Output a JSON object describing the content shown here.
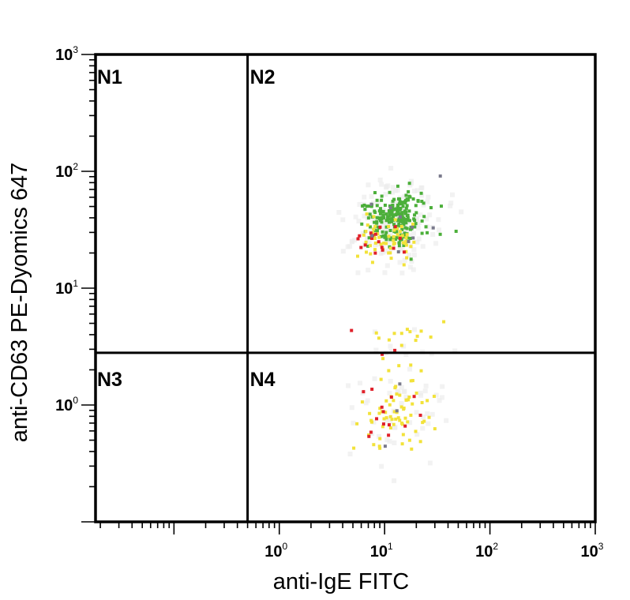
{
  "chart_data": {
    "type": "scatter",
    "title": "",
    "xlabel": "anti-IgE FITC",
    "ylabel": "anti-CD63 PE-Dyomics 647",
    "x_scale": "log",
    "y_scale": "log",
    "xlim": [
      0.018,
      1000
    ],
    "ylim": [
      0.1,
      1000
    ],
    "x_ticks": [
      {
        "value": 1,
        "base": "10",
        "exp": "0"
      },
      {
        "value": 10,
        "base": "10",
        "exp": "1"
      },
      {
        "value": 100,
        "base": "10",
        "exp": "2"
      },
      {
        "value": 1000,
        "base": "10",
        "exp": "3"
      }
    ],
    "y_ticks": [
      {
        "value": 1,
        "base": "10",
        "exp": "0"
      },
      {
        "value": 10,
        "base": "10",
        "exp": "1"
      },
      {
        "value": 100,
        "base": "10",
        "exp": "2"
      },
      {
        "value": 1000,
        "base": "10",
        "exp": "3"
      }
    ],
    "gate": {
      "x": 0.5,
      "y": 2.8
    },
    "quadrants": [
      "N1",
      "N2",
      "N3",
      "N4"
    ],
    "colors": {
      "green": "#4caf3a",
      "yellow": "#f2e23a",
      "red": "#e0202a",
      "gray": "#7a7a8c",
      "frame": "#000000"
    },
    "clusters": [
      {
        "density": "green",
        "x_center": 13,
        "y_center": 40,
        "x_spread": 0.15,
        "y_spread": 0.11,
        "count": 220
      },
      {
        "density": "yellow",
        "x_center": 11,
        "y_center": 26,
        "x_spread": 0.16,
        "y_spread": 0.13,
        "count": 55
      },
      {
        "density": "red",
        "x_center": 9,
        "y_center": 25,
        "x_spread": 0.12,
        "y_spread": 0.08,
        "count": 18
      },
      {
        "density": "gray",
        "x_center": 11,
        "y_center": 34,
        "x_spread": 0.2,
        "y_spread": 0.15,
        "count": 10
      },
      {
        "density": "yellow",
        "x_center": 13,
        "y_center": 3.6,
        "x_spread": 0.18,
        "y_spread": 0.09,
        "count": 14
      },
      {
        "density": "red",
        "x_center": 8,
        "y_center": 3.5,
        "x_spread": 0.12,
        "y_spread": 0.1,
        "count": 3
      },
      {
        "density": "yellow",
        "x_center": 13,
        "y_center": 0.9,
        "x_spread": 0.17,
        "y_spread": 0.16,
        "count": 70
      },
      {
        "density": "red",
        "x_center": 11,
        "y_center": 0.85,
        "x_spread": 0.16,
        "y_spread": 0.17,
        "count": 14
      },
      {
        "density": "gray",
        "x_center": 10,
        "y_center": 0.8,
        "x_spread": 0.15,
        "y_spread": 0.15,
        "count": 3
      }
    ]
  }
}
